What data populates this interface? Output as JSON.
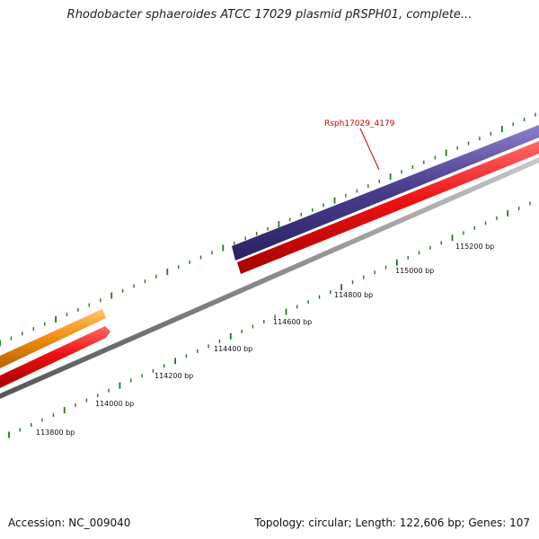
{
  "title": "Rhodobacter sphaeroides ATCC 17029 plasmid pRSPH01, complete...",
  "footer": {
    "accession": "Accession: NC_009040",
    "summary": "Topology: circular; Length: 122,606 bp; Genes: 107"
  },
  "map": {
    "colors": {
      "backbone": "#8a8a8a",
      "forward_gene": "#4b3f8f",
      "reverse_gene": "#ee1111",
      "other_gene": "#f39012",
      "tick": "#1d7a1d",
      "label": "#cc0000"
    },
    "gene_label": "Rsph17029_4179",
    "position_labels": [
      "113800 bp",
      "114000 bp",
      "114200 bp",
      "114400 bp",
      "114600 bp",
      "114800 bp",
      "115000 bp",
      "115200 bp"
    ]
  }
}
